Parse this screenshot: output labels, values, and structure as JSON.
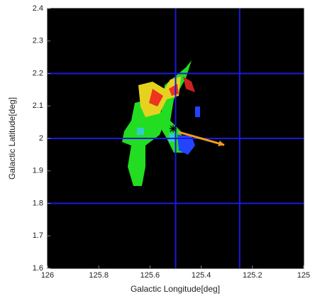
{
  "chart_data": {
    "type": "image",
    "x_label": "Galactic Longitude[deg]",
    "y_label": "Galactic Latitude[deg]",
    "xlim": [
      126,
      125
    ],
    "ylim": [
      1.6,
      2.4
    ],
    "xticks": [
      126,
      125.8,
      125.6,
      125.4,
      125.2,
      125
    ],
    "yticks": [
      1.6,
      1.7,
      1.8,
      1.9,
      2,
      2.1,
      2.2,
      2.3,
      2.4
    ],
    "xgrid": [
      125.5,
      125.25
    ],
    "ygrid": [
      2.2,
      2,
      1.8
    ],
    "grid_color": "#1a1adc",
    "marker": {
      "x": 125.51,
      "y": 2.03
    },
    "arrow": {
      "x": [
        125.49,
        125.31
      ],
      "y": [
        2.02,
        1.98
      ],
      "color": "#f39a1e"
    }
  }
}
